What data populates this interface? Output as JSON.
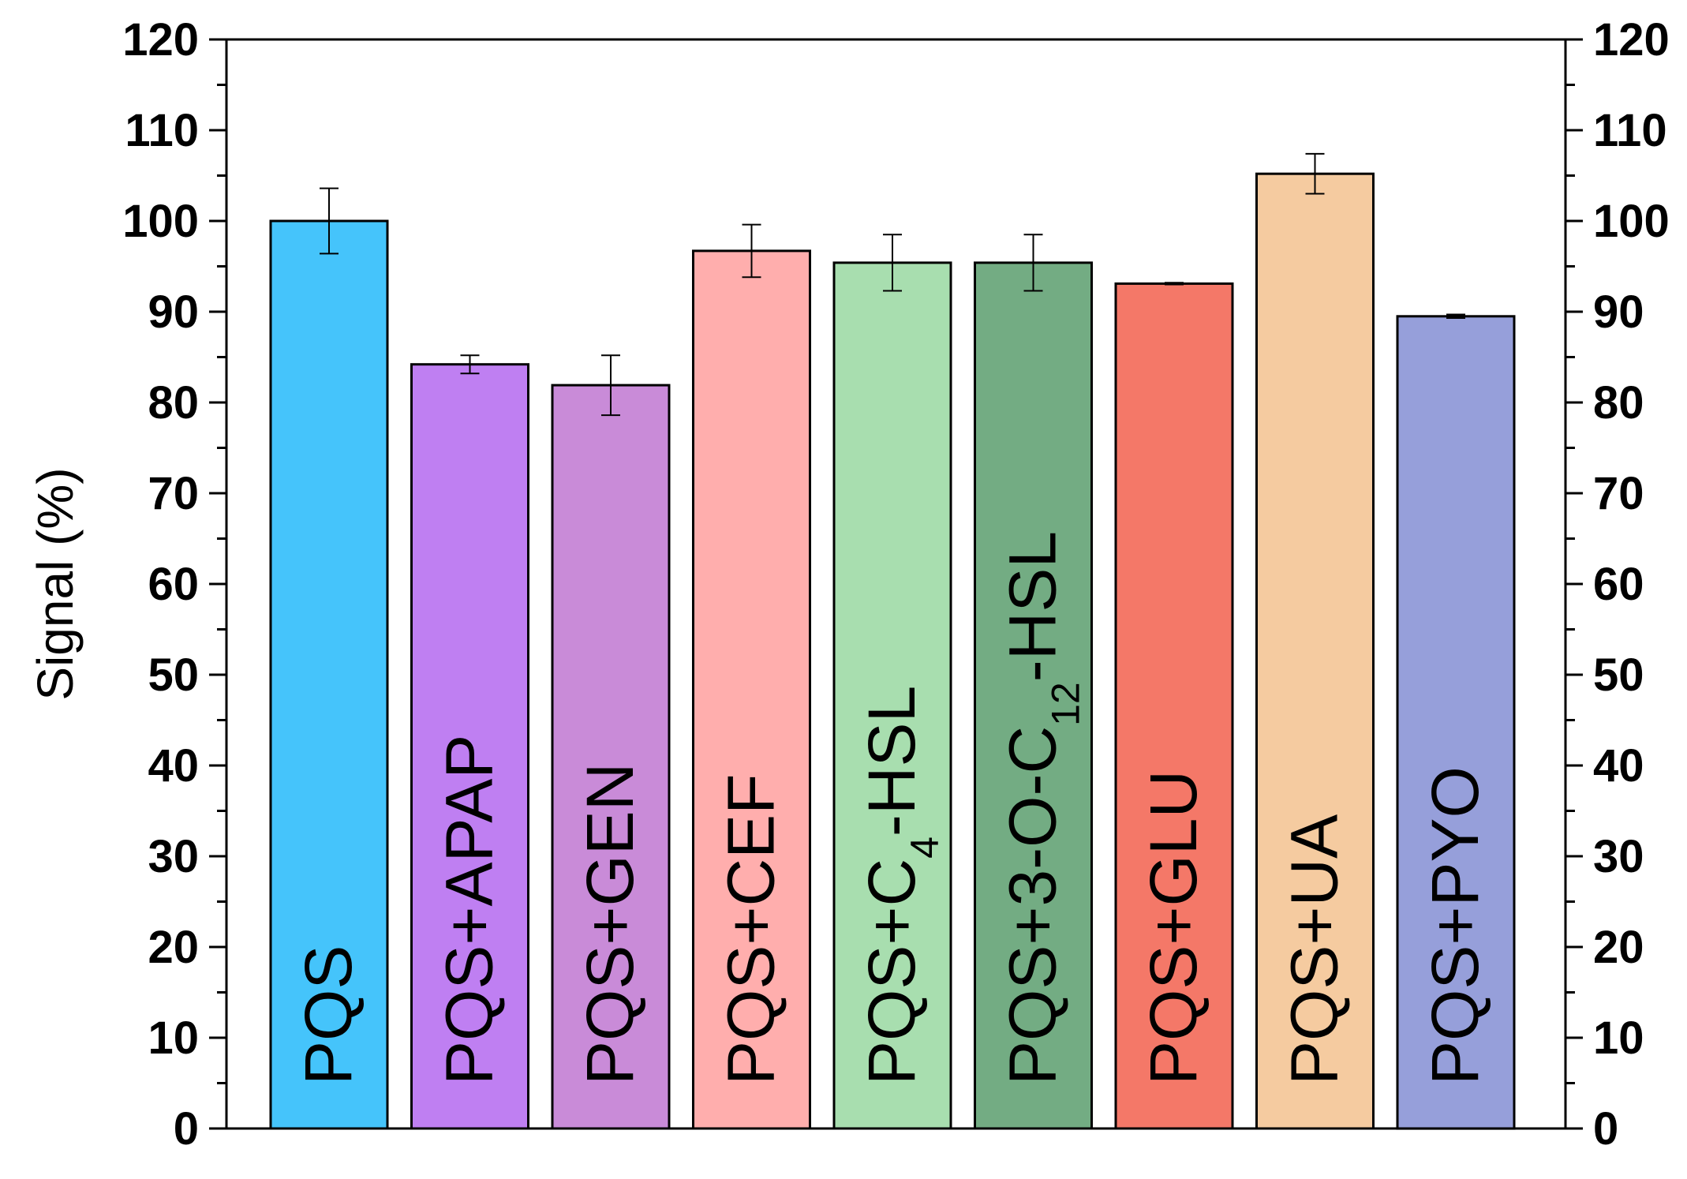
{
  "chart_data": {
    "type": "bar",
    "title": "",
    "xlabel": "",
    "ylabel": "Signal (%)",
    "ylim": [
      0,
      120
    ],
    "y_major_ticks": [
      0,
      10,
      20,
      30,
      40,
      50,
      60,
      70,
      80,
      90,
      100,
      110,
      120
    ],
    "y_minor_step": 5,
    "right_axis_mirrored": true,
    "grid": false,
    "categories": [
      {
        "label_parts": [
          {
            "text": "PQS",
            "sub": false
          }
        ]
      },
      {
        "label_parts": [
          {
            "text": "PQS+APAP",
            "sub": false
          }
        ]
      },
      {
        "label_parts": [
          {
            "text": "PQS+GEN",
            "sub": false
          }
        ]
      },
      {
        "label_parts": [
          {
            "text": "PQS+CEF",
            "sub": false
          }
        ]
      },
      {
        "label_parts": [
          {
            "text": "PQS+C",
            "sub": false
          },
          {
            "text": "4",
            "sub": true
          },
          {
            "text": "-HSL",
            "sub": false
          }
        ]
      },
      {
        "label_parts": [
          {
            "text": "PQS+3-O-C",
            "sub": false
          },
          {
            "text": "12",
            "sub": true
          },
          {
            "text": "-HSL",
            "sub": false
          }
        ]
      },
      {
        "label_parts": [
          {
            "text": "PQS+GLU",
            "sub": false
          }
        ]
      },
      {
        "label_parts": [
          {
            "text": "PQS+UA",
            "sub": false
          }
        ]
      },
      {
        "label_parts": [
          {
            "text": "PQS+PYO",
            "sub": false
          }
        ]
      }
    ],
    "values": [
      100.0,
      84.2,
      81.9,
      96.7,
      95.4,
      95.4,
      93.1,
      105.2,
      89.5
    ],
    "errors": [
      3.6,
      1.0,
      3.3,
      2.9,
      3.1,
      3.1,
      0.1,
      2.2,
      0.2
    ],
    "colors": [
      "#45C4FB",
      "#BF7FF2",
      "#C98BD8",
      "#FFAEAD",
      "#A8DEAF",
      "#73AC83",
      "#F47868",
      "#F5CBA0",
      "#969FDA"
    ]
  }
}
